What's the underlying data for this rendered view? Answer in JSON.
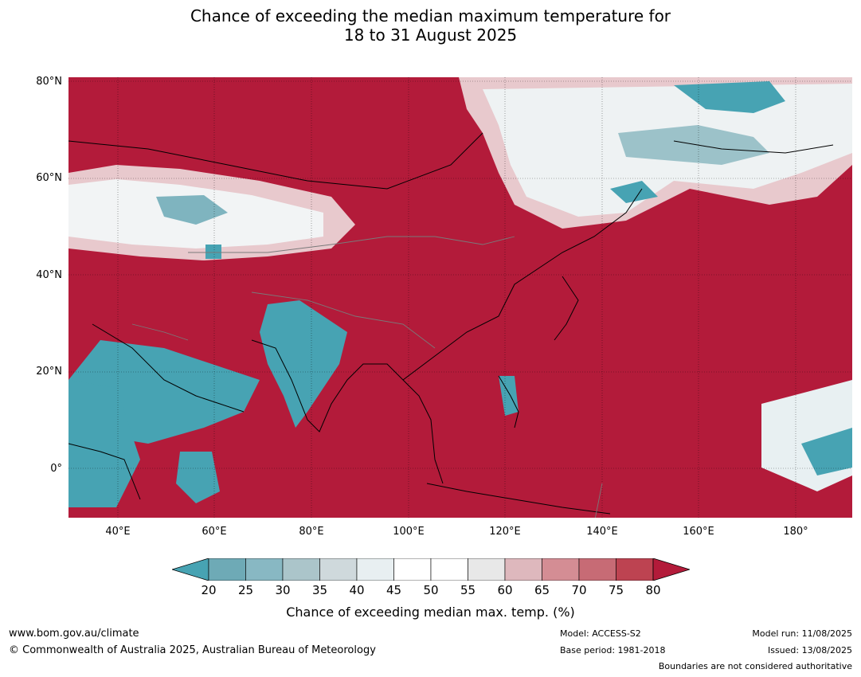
{
  "title": {
    "line1": "Chance of exceeding the median maximum temperature for",
    "line2": "18 to 31 August 2025"
  },
  "map": {
    "type": "probability forecast map",
    "region": "Asia and western Pacific",
    "colors": {
      "above": "#b31b3a",
      "below": "#47a3b3"
    },
    "lat_ticks": [
      "80°N",
      "60°N",
      "40°N",
      "20°N",
      "0°"
    ],
    "lon_ticks": [
      "40°E",
      "60°E",
      "80°E",
      "100°E",
      "120°E",
      "140°E",
      "160°E",
      "180°"
    ]
  },
  "colorbar": {
    "ticks": [
      "20",
      "25",
      "30",
      "35",
      "40",
      "45",
      "50",
      "55",
      "60",
      "65",
      "70",
      "75",
      "80"
    ],
    "colors": [
      "#47a3b3",
      "#6eaab6",
      "#88b8c3",
      "#abc5ca",
      "#cfd9dc",
      "#e8eff1",
      "#ffffff",
      "#ffffff",
      "#e8e8e8",
      "#deb8bd",
      "#d48d94",
      "#c76b75",
      "#bd4351",
      "#b31b3a"
    ],
    "label": "Chance of exceeding median max. temp. (%)"
  },
  "footer": {
    "website": "www.bom.gov.au/climate",
    "copyright": "© Commonwealth of Australia 2025, Australian Bureau of Meteorology",
    "model": "Model: ACCESS-S2",
    "base_period": "Base period: 1981-2018",
    "model_run": "Model run: 11/08/2025",
    "issued": "Issued: 13/08/2025",
    "disclaimer": "Boundaries are not considered authoritative"
  }
}
